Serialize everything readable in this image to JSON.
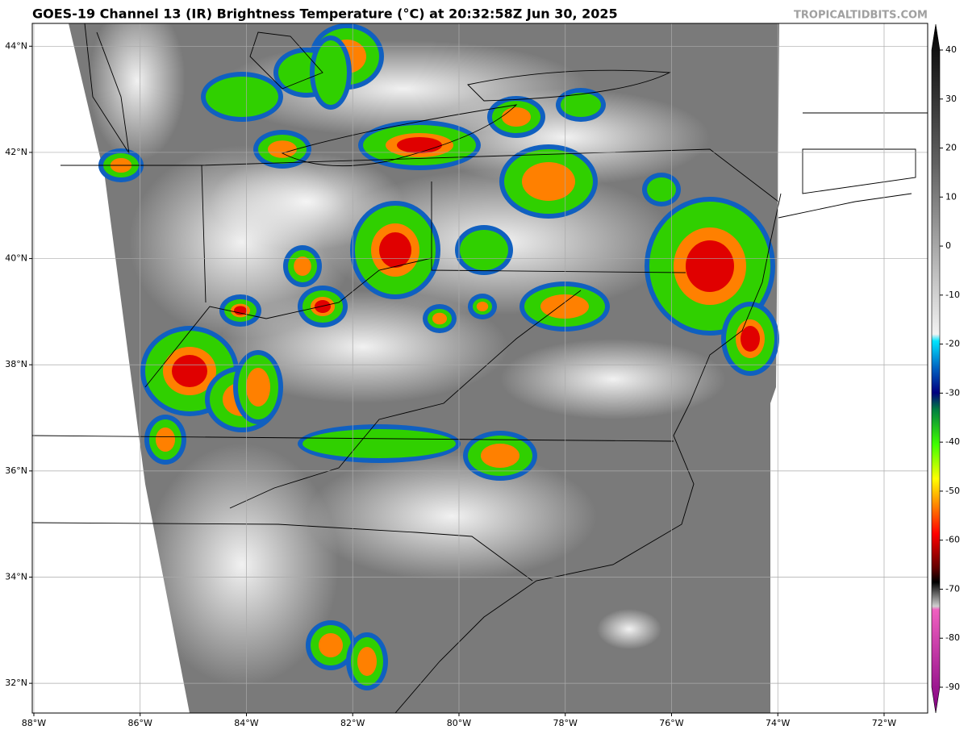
{
  "title": "GOES-19 Channel 13 (IR) Brightness Temperature (°C) at 20:32:58Z Jun 30, 2025",
  "credit": "TROPICALTIDBITS.COM",
  "map": {
    "lonlim": [
      -88.03,
      -71.18
    ],
    "latlim": [
      31.44,
      44.43
    ],
    "lon_ticks": [
      {
        "value": -88,
        "label": "88°W"
      },
      {
        "value": -86,
        "label": "86°W"
      },
      {
        "value": -84,
        "label": "84°W"
      },
      {
        "value": -82,
        "label": "82°W"
      },
      {
        "value": -80,
        "label": "80°W"
      },
      {
        "value": -78,
        "label": "78°W"
      },
      {
        "value": -76,
        "label": "76°W"
      },
      {
        "value": -74,
        "label": "74°W"
      },
      {
        "value": -72,
        "label": "72°W"
      }
    ],
    "lat_ticks": [
      {
        "value": 44,
        "label": "44°N"
      },
      {
        "value": 42,
        "label": "42°N"
      },
      {
        "value": 40,
        "label": "40°N"
      },
      {
        "value": 38,
        "label": "38°N"
      },
      {
        "value": 36,
        "label": "36°N"
      },
      {
        "value": 34,
        "label": "34°N"
      },
      {
        "value": 32,
        "label": "32°N"
      }
    ],
    "grid": true
  },
  "colorbar": {
    "lim": [
      -90,
      40
    ],
    "ticks": [
      40,
      30,
      20,
      10,
      0,
      -10,
      -20,
      -30,
      -40,
      -50,
      -60,
      -70,
      -80,
      -90
    ]
  }
}
